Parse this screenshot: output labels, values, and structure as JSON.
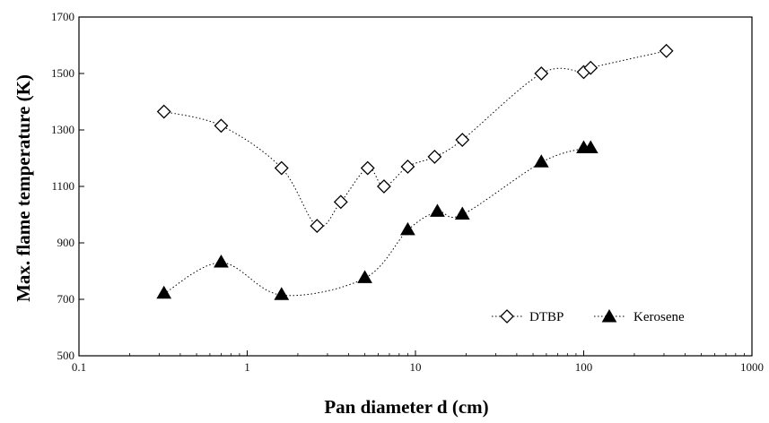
{
  "chart_data": {
    "type": "scatter",
    "title": "",
    "xlabel": "Pan diameter d (cm)",
    "ylabel": "Max. flame temperature  (K)",
    "x_scale": "log",
    "xlim": [
      0.1,
      1000
    ],
    "ylim": [
      500,
      1700
    ],
    "x_ticks": [
      0.1,
      1,
      10,
      100,
      1000
    ],
    "x_tick_labels": [
      "0.1",
      "1",
      "10",
      "100",
      "1000"
    ],
    "y_ticks": [
      500,
      700,
      900,
      1100,
      1300,
      1500,
      1700
    ],
    "y_tick_labels": [
      "500",
      "700",
      "900",
      "1100",
      "1300",
      "1500",
      "1700"
    ],
    "grid": false,
    "legend_position": "bottom-right",
    "series": [
      {
        "name": "DTBP",
        "marker": "open-diamond",
        "line": "dotted",
        "color": "#000000",
        "x": [
          0.32,
          0.7,
          1.6,
          2.6,
          3.6,
          5.2,
          6.5,
          9.0,
          13.0,
          19.0,
          56.0,
          100.0,
          110.0,
          310.0
        ],
        "y": [
          1365,
          1315,
          1165,
          960,
          1045,
          1165,
          1100,
          1170,
          1205,
          1265,
          1500,
          1505,
          1520,
          1580
        ]
      },
      {
        "name": "Kerosene",
        "marker": "filled-triangle",
        "line": "dotted",
        "color": "#000000",
        "x": [
          0.32,
          0.7,
          1.6,
          5.0,
          9.0,
          13.5,
          19.0,
          56.0,
          100.0,
          110.0
        ],
        "y": [
          720,
          830,
          715,
          775,
          945,
          1010,
          1000,
          1185,
          1235,
          1235
        ]
      }
    ]
  }
}
